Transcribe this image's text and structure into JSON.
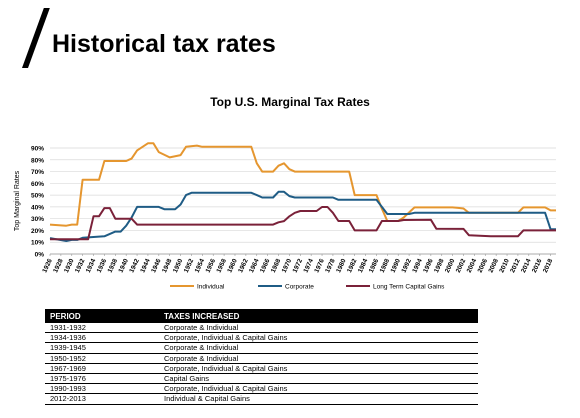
{
  "page": {
    "title": "Historical tax rates"
  },
  "chart_data": {
    "type": "line",
    "title": "Top U.S. Marginal Tax Rates",
    "xlabel": "",
    "ylabel": "Top Marginal Rates",
    "xlim": [
      1926,
      2019
    ],
    "ylim": [
      0,
      0.9
    ],
    "y_ticks": [
      "0%",
      "10%",
      "20%",
      "30%",
      "40%",
      "50%",
      "60%",
      "70%",
      "80%",
      "90%"
    ],
    "x_ticks": [
      "1926",
      "1928",
      "1930",
      "1932",
      "1934",
      "1936",
      "1938",
      "1940",
      "1942",
      "1944",
      "1946",
      "1948",
      "1950",
      "1952",
      "1954",
      "1956",
      "1958",
      "1960",
      "1962",
      "1964",
      "1966",
      "1968",
      "1970",
      "1972",
      "1974",
      "1976",
      "1978",
      "1980",
      "1982",
      "1984",
      "1986",
      "1988",
      "1990",
      "1992",
      "1994",
      "1996",
      "1998",
      "2000",
      "2002",
      "2004",
      "2006",
      "2008",
      "2010",
      "2012",
      "2014",
      "2016",
      "2018"
    ],
    "grid": true,
    "legend_position": "bottom",
    "series": [
      {
        "name": "Individual",
        "color": "#E5962F",
        "points": [
          [
            1926,
            0.25
          ],
          [
            1929,
            0.24
          ],
          [
            1930,
            0.25
          ],
          [
            1931,
            0.25
          ],
          [
            1932,
            0.63
          ],
          [
            1935,
            0.63
          ],
          [
            1936,
            0.79
          ],
          [
            1940,
            0.79
          ],
          [
            1941,
            0.81
          ],
          [
            1942,
            0.88
          ],
          [
            1944,
            0.94
          ],
          [
            1945,
            0.94
          ],
          [
            1946,
            0.865
          ],
          [
            1948,
            0.82
          ],
          [
            1950,
            0.84
          ],
          [
            1951,
            0.91
          ],
          [
            1953,
            0.92
          ],
          [
            1954,
            0.91
          ],
          [
            1963,
            0.91
          ],
          [
            1964,
            0.77
          ],
          [
            1965,
            0.7
          ],
          [
            1967,
            0.7
          ],
          [
            1968,
            0.75
          ],
          [
            1969,
            0.77
          ],
          [
            1970,
            0.72
          ],
          [
            1971,
            0.7
          ],
          [
            1981,
            0.7
          ],
          [
            1982,
            0.5
          ],
          [
            1986,
            0.5
          ],
          [
            1987,
            0.385
          ],
          [
            1988,
            0.28
          ],
          [
            1990,
            0.28
          ],
          [
            1991,
            0.31
          ],
          [
            1993,
            0.396
          ],
          [
            2000,
            0.396
          ],
          [
            2001,
            0.391
          ],
          [
            2002,
            0.386
          ],
          [
            2003,
            0.35
          ],
          [
            2012,
            0.35
          ],
          [
            2013,
            0.396
          ],
          [
            2017,
            0.396
          ],
          [
            2018,
            0.37
          ],
          [
            2019,
            0.37
          ]
        ]
      },
      {
        "name": "Corporate",
        "color": "#1F5C85",
        "points": [
          [
            1926,
            0.135
          ],
          [
            1929,
            0.11
          ],
          [
            1930,
            0.12
          ],
          [
            1931,
            0.12
          ],
          [
            1932,
            0.1375
          ],
          [
            1936,
            0.15
          ],
          [
            1938,
            0.19
          ],
          [
            1939,
            0.19
          ],
          [
            1940,
            0.24
          ],
          [
            1941,
            0.31
          ],
          [
            1942,
            0.4
          ],
          [
            1946,
            0.4
          ],
          [
            1947,
            0.38
          ],
          [
            1949,
            0.38
          ],
          [
            1950,
            0.42
          ],
          [
            1951,
            0.5
          ],
          [
            1952,
            0.52
          ],
          [
            1963,
            0.52
          ],
          [
            1964,
            0.5
          ],
          [
            1965,
            0.48
          ],
          [
            1967,
            0.48
          ],
          [
            1968,
            0.528
          ],
          [
            1969,
            0.528
          ],
          [
            1970,
            0.492
          ],
          [
            1971,
            0.48
          ],
          [
            1978,
            0.48
          ],
          [
            1979,
            0.46
          ],
          [
            1986,
            0.46
          ],
          [
            1987,
            0.4
          ],
          [
            1988,
            0.34
          ],
          [
            1992,
            0.34
          ],
          [
            1993,
            0.35
          ],
          [
            2017,
            0.35
          ],
          [
            2018,
            0.21
          ],
          [
            2019,
            0.21
          ]
        ]
      },
      {
        "name": "Long Term Capital Gains",
        "color": "#7A2139",
        "points": [
          [
            1926,
            0.125
          ],
          [
            1933,
            0.125
          ],
          [
            1934,
            0.32
          ],
          [
            1935,
            0.32
          ],
          [
            1936,
            0.39
          ],
          [
            1937,
            0.39
          ],
          [
            1938,
            0.3
          ],
          [
            1941,
            0.3
          ],
          [
            1942,
            0.25
          ],
          [
            1967,
            0.25
          ],
          [
            1968,
            0.269
          ],
          [
            1969,
            0.279
          ],
          [
            1970,
            0.32
          ],
          [
            1971,
            0.35
          ],
          [
            1972,
            0.365
          ],
          [
            1975,
            0.365
          ],
          [
            1976,
            0.399
          ],
          [
            1977,
            0.399
          ],
          [
            1978,
            0.35
          ],
          [
            1979,
            0.28
          ],
          [
            1981,
            0.28
          ],
          [
            1982,
            0.2
          ],
          [
            1986,
            0.2
          ],
          [
            1987,
            0.28
          ],
          [
            1990,
            0.28
          ],
          [
            1991,
            0.289
          ],
          [
            1996,
            0.29
          ],
          [
            1997,
            0.215
          ],
          [
            2002,
            0.213
          ],
          [
            2003,
            0.16
          ],
          [
            2007,
            0.15
          ],
          [
            2012,
            0.15
          ],
          [
            2013,
            0.2
          ],
          [
            2019,
            0.2
          ]
        ]
      }
    ]
  },
  "table": {
    "headers": {
      "period": "PERIOD",
      "taxes": "TAXES INCREASED"
    },
    "rows": [
      {
        "period": "1931-1932",
        "taxes": "Corporate  & Individual"
      },
      {
        "period": "1934-1936",
        "taxes": "Corporate,  Individual  & Capital Gains"
      },
      {
        "period": "1939-1945",
        "taxes": "Corporate & Individual"
      },
      {
        "period": "1950-1952",
        "taxes": "Corporate & Individual"
      },
      {
        "period": "1967-1969",
        "taxes": "Corporate,  Individual  & Capital Gains"
      },
      {
        "period": "1975-1976",
        "taxes": "Capital Gains"
      },
      {
        "period": "1990-1993",
        "taxes": "Corporate,  Individual  & Capital Gains"
      },
      {
        "period": "2012-2013",
        "taxes": "Individual  & Capital Gains"
      }
    ]
  }
}
